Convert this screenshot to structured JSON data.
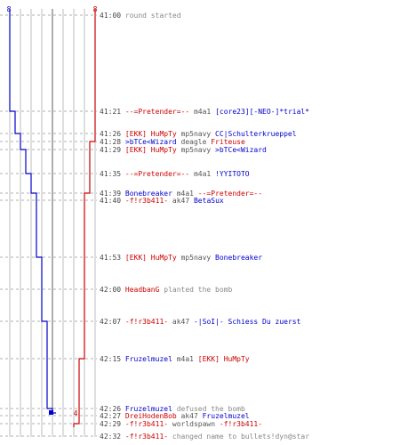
{
  "colors": {
    "blue": "#0000cc",
    "red": "#cc0000",
    "grey": "#888888",
    "dark": "#555555"
  },
  "counts": {
    "blue_start": "8",
    "red_start": "8",
    "red_end": "4"
  },
  "events": [
    {
      "time": "41:00",
      "parts": [
        {
          "t": "round started",
          "c": "grey"
        }
      ]
    },
    {
      "time": "41:21",
      "parts": [
        {
          "t": "--=Pretender=--",
          "c": "red"
        },
        {
          "t": "m4a1",
          "c": "dark"
        },
        {
          "t": "[core23][-NEO-]*trial*",
          "c": "blue"
        }
      ]
    },
    {
      "time": "41:26",
      "parts": [
        {
          "t": "[EKK] HuMpTy",
          "c": "red"
        },
        {
          "t": "mp5navy",
          "c": "dark"
        },
        {
          "t": "CC|Schulterkrueppel",
          "c": "blue"
        }
      ]
    },
    {
      "time": "41:28",
      "parts": [
        {
          "t": ">bTCe<Wizard",
          "c": "blue"
        },
        {
          "t": "deagle",
          "c": "dark"
        },
        {
          "t": "Friteuse",
          "c": "red"
        }
      ]
    },
    {
      "time": "41:29",
      "parts": [
        {
          "t": "[EKK] HuMpTy",
          "c": "red"
        },
        {
          "t": "mp5navy",
          "c": "dark"
        },
        {
          "t": ">bTCe<Wizard",
          "c": "blue"
        }
      ]
    },
    {
      "time": "41:35",
      "parts": [
        {
          "t": "--=Pretender=--",
          "c": "red"
        },
        {
          "t": "m4a1",
          "c": "dark"
        },
        {
          "t": "!YYITOTO",
          "c": "blue"
        }
      ]
    },
    {
      "time": "41:39",
      "parts": [
        {
          "t": "Bonebreaker",
          "c": "blue"
        },
        {
          "t": "m4a1",
          "c": "dark"
        },
        {
          "t": "--=Pretender=--",
          "c": "red"
        }
      ]
    },
    {
      "time": "41:40",
      "parts": [
        {
          "t": "-f!r3b411-",
          "c": "red"
        },
        {
          "t": "ak47",
          "c": "dark"
        },
        {
          "t": "BetaSux",
          "c": "blue"
        }
      ]
    },
    {
      "time": "41:53",
      "parts": [
        {
          "t": "[EKK] HuMpTy",
          "c": "red"
        },
        {
          "t": "mp5navy",
          "c": "dark"
        },
        {
          "t": "Bonebreaker",
          "c": "blue"
        }
      ]
    },
    {
      "time": "42:00",
      "parts": [
        {
          "t": "HeadbanG",
          "c": "red"
        },
        {
          "t": "planted the bomb",
          "c": "grey"
        }
      ]
    },
    {
      "time": "42:07",
      "parts": [
        {
          "t": "-f!r3b411-",
          "c": "red"
        },
        {
          "t": "ak47",
          "c": "dark"
        },
        {
          "t": "-|SoI|- Schiess Du zuerst",
          "c": "blue"
        }
      ]
    },
    {
      "time": "42:15",
      "parts": [
        {
          "t": "Fruzelmuzel",
          "c": "blue"
        },
        {
          "t": "m4a1",
          "c": "dark"
        },
        {
          "t": "[EKK] HuMpTy",
          "c": "red"
        }
      ]
    },
    {
      "time": "42:26",
      "parts": [
        {
          "t": "Fruzelmuzel",
          "c": "blue"
        },
        {
          "t": "defused the bomb",
          "c": "grey"
        }
      ]
    },
    {
      "time": "42:27",
      "parts": [
        {
          "t": "DreiHodenBob",
          "c": "red"
        },
        {
          "t": "ak47",
          "c": "dark"
        },
        {
          "t": "Fruzelmuzel",
          "c": "blue"
        }
      ]
    },
    {
      "time": "42:29",
      "parts": [
        {
          "t": "-f!r3b411-",
          "c": "red"
        },
        {
          "t": "worldspawn",
          "c": "dark"
        },
        {
          "t": "-f!r3b411-",
          "c": "red"
        }
      ]
    },
    {
      "time": "42:32",
      "parts": [
        {
          "t": "-f!r3b411-",
          "c": "red"
        },
        {
          "t": "changed name to bullets!dyn@star",
          "c": "grey"
        }
      ]
    }
  ]
}
